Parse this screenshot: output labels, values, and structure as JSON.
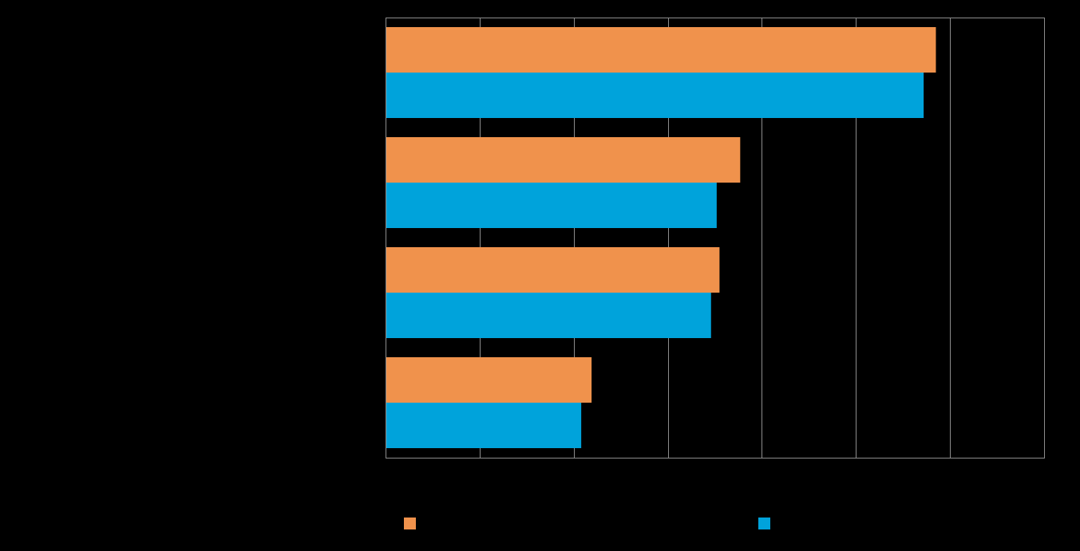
{
  "chart_data": {
    "type": "bar",
    "orientation": "horizontal",
    "title": "",
    "xlabel": "",
    "ylabel": "",
    "categories": [
      "",
      "",
      "",
      ""
    ],
    "xlim": [
      0,
      7
    ],
    "tick_count": 7,
    "grid": true,
    "legend_position": "bottom",
    "series": [
      {
        "color": "#F0924C",
        "values": [
          5.85,
          3.77,
          3.55,
          2.19
        ]
      },
      {
        "color": "#00A3DB",
        "values": [
          5.72,
          3.52,
          3.46,
          2.08
        ]
      }
    ]
  },
  "colors": {
    "background": "#000000",
    "gridline": "#8C8C8C",
    "axis": "#8C8C8C"
  }
}
